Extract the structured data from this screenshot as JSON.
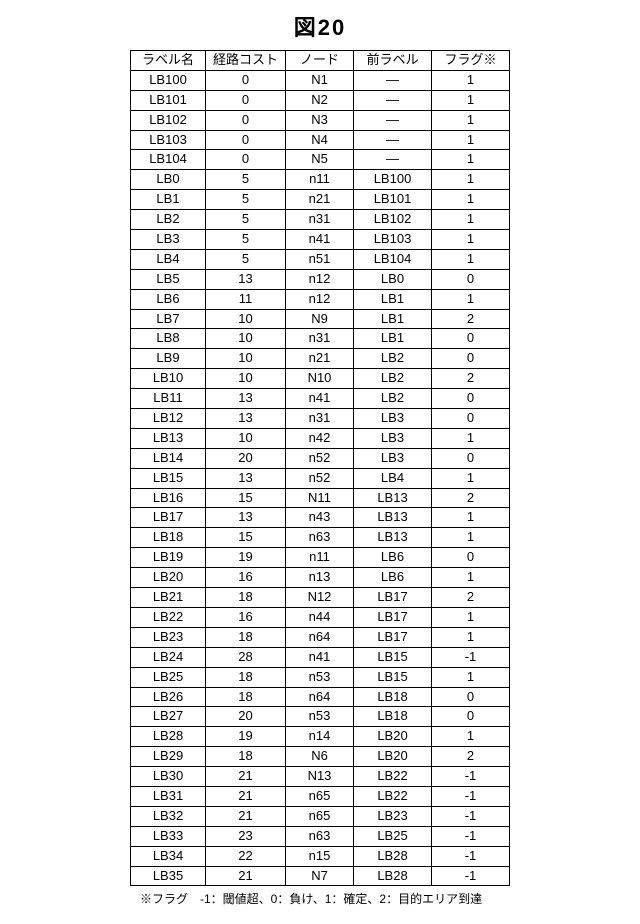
{
  "title": "図20",
  "columns": [
    "ラベル名",
    "経路コスト",
    "ノード",
    "前ラベル",
    "フラグ※"
  ],
  "rows": [
    [
      "LB100",
      "0",
      "N1",
      "―",
      "1"
    ],
    [
      "LB101",
      "0",
      "N2",
      "―",
      "1"
    ],
    [
      "LB102",
      "0",
      "N3",
      "―",
      "1"
    ],
    [
      "LB103",
      "0",
      "N4",
      "―",
      "1"
    ],
    [
      "LB104",
      "0",
      "N5",
      "―",
      "1"
    ],
    [
      "LB0",
      "5",
      "n11",
      "LB100",
      "1"
    ],
    [
      "LB1",
      "5",
      "n21",
      "LB101",
      "1"
    ],
    [
      "LB2",
      "5",
      "n31",
      "LB102",
      "1"
    ],
    [
      "LB3",
      "5",
      "n41",
      "LB103",
      "1"
    ],
    [
      "LB4",
      "5",
      "n51",
      "LB104",
      "1"
    ],
    [
      "LB5",
      "13",
      "n12",
      "LB0",
      "0"
    ],
    [
      "LB6",
      "11",
      "n12",
      "LB1",
      "1"
    ],
    [
      "LB7",
      "10",
      "N9",
      "LB1",
      "2"
    ],
    [
      "LB8",
      "10",
      "n31",
      "LB1",
      "0"
    ],
    [
      "LB9",
      "10",
      "n21",
      "LB2",
      "0"
    ],
    [
      "LB10",
      "10",
      "N10",
      "LB2",
      "2"
    ],
    [
      "LB11",
      "13",
      "n41",
      "LB2",
      "0"
    ],
    [
      "LB12",
      "13",
      "n31",
      "LB3",
      "0"
    ],
    [
      "LB13",
      "10",
      "n42",
      "LB3",
      "1"
    ],
    [
      "LB14",
      "20",
      "n52",
      "LB3",
      "0"
    ],
    [
      "LB15",
      "13",
      "n52",
      "LB4",
      "1"
    ],
    [
      "LB16",
      "15",
      "N11",
      "LB13",
      "2"
    ],
    [
      "LB17",
      "13",
      "n43",
      "LB13",
      "1"
    ],
    [
      "LB18",
      "15",
      "n63",
      "LB13",
      "1"
    ],
    [
      "LB19",
      "19",
      "n11",
      "LB6",
      "0"
    ],
    [
      "LB20",
      "16",
      "n13",
      "LB6",
      "1"
    ],
    [
      "LB21",
      "18",
      "N12",
      "LB17",
      "2"
    ],
    [
      "LB22",
      "16",
      "n44",
      "LB17",
      "1"
    ],
    [
      "LB23",
      "18",
      "n64",
      "LB17",
      "1"
    ],
    [
      "LB24",
      "28",
      "n41",
      "LB15",
      "-1"
    ],
    [
      "LB25",
      "18",
      "n53",
      "LB15",
      "1"
    ],
    [
      "LB26",
      "18",
      "n64",
      "LB18",
      "0"
    ],
    [
      "LB27",
      "20",
      "n53",
      "LB18",
      "0"
    ],
    [
      "LB28",
      "19",
      "n14",
      "LB20",
      "1"
    ],
    [
      "LB29",
      "18",
      "N6",
      "LB20",
      "2"
    ],
    [
      "LB30",
      "21",
      "N13",
      "LB22",
      "-1"
    ],
    [
      "LB31",
      "21",
      "n65",
      "LB22",
      "-1"
    ],
    [
      "LB32",
      "21",
      "n65",
      "LB23",
      "-1"
    ],
    [
      "LB33",
      "23",
      "n63",
      "LB25",
      "-1"
    ],
    [
      "LB34",
      "22",
      "n15",
      "LB28",
      "-1"
    ],
    [
      "LB35",
      "21",
      "N7",
      "LB28",
      "-1"
    ]
  ],
  "footnote": "※フラグ　-1：閾値超、0：負け、1：確定、2：目的エリア到達"
}
